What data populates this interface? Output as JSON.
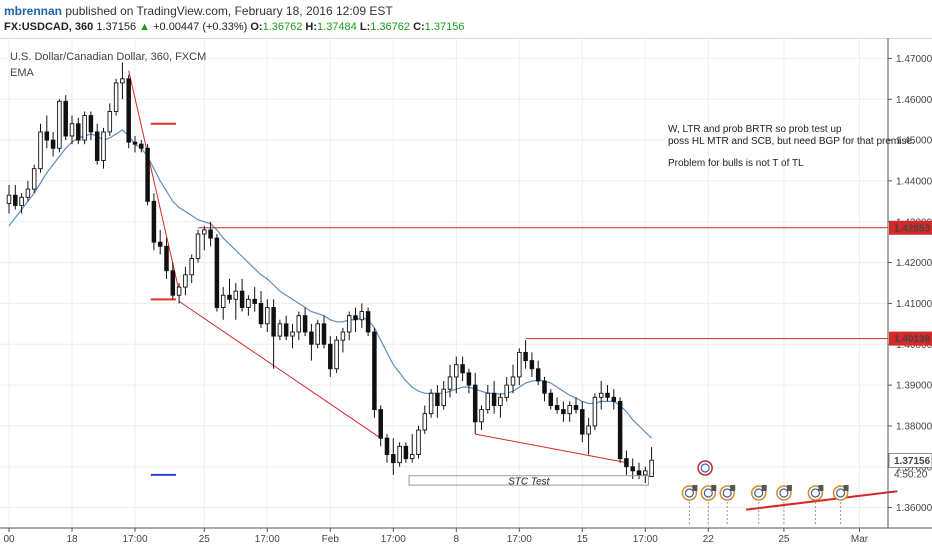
{
  "header": {
    "user": "mbrennan",
    "published": "published on TradingView.com, February 18, 2016 12:09 EST"
  },
  "quote": {
    "symbol": "FX:USDCAD, 360",
    "last": "1.37156",
    "arrow": "▲",
    "change": "+0.00447 (+0.33%)",
    "open_label": "O:",
    "open": "1.36762",
    "high_label": "H:",
    "high": "1.37484",
    "low_label": "L:",
    "low": "1.36762",
    "close_label": "C:",
    "close": "1.37156"
  },
  "chart_data": {
    "type": "candlestick",
    "title": "U.S. Dollar/Canadian Dollar, 360, FXCM",
    "indicator": "EMA",
    "ylim": [
      1.355,
      1.475
    ],
    "y_ticks": [
      "1.47000",
      "1.46000",
      "1.45000",
      "1.44000",
      "1.43000",
      "1.42000",
      "1.41000",
      "1.40000",
      "1.39000",
      "1.38000",
      "1.37000",
      "1.36000"
    ],
    "x_ticks": [
      {
        "i": 0,
        "label": "00"
      },
      {
        "i": 10,
        "label": "18"
      },
      {
        "i": 20,
        "label": "17:00"
      },
      {
        "i": 31,
        "label": "25"
      },
      {
        "i": 41,
        "label": "17:00"
      },
      {
        "i": 51,
        "label": "Feb"
      },
      {
        "i": 61,
        "label": "17:00"
      },
      {
        "i": 71,
        "label": "8"
      },
      {
        "i": 81,
        "label": "17:00"
      },
      {
        "i": 91,
        "label": "15"
      },
      {
        "i": 101,
        "label": "17:00"
      },
      {
        "i": 111,
        "label": "22"
      },
      {
        "i": 123,
        "label": "25"
      },
      {
        "i": 135,
        "label": "Mar"
      }
    ],
    "price_labels": [
      {
        "value": 1.42853,
        "text": "1.42853"
      },
      {
        "value": 1.40138,
        "text": "1.40138"
      },
      {
        "value": 1.37156,
        "text": "1.37156"
      }
    ],
    "countdown": "4:50:20",
    "ohlc": [
      [
        1.4345,
        1.439,
        1.432,
        1.4365
      ],
      [
        1.4365,
        1.439,
        1.433,
        1.434
      ],
      [
        1.434,
        1.437,
        1.432,
        1.436
      ],
      [
        1.436,
        1.44,
        1.435,
        1.438
      ],
      [
        1.438,
        1.444,
        1.437,
        1.443
      ],
      [
        1.443,
        1.454,
        1.442,
        1.452
      ],
      [
        1.452,
        1.456,
        1.448,
        1.45
      ],
      [
        1.45,
        1.452,
        1.446,
        1.448
      ],
      [
        1.448,
        1.46,
        1.447,
        1.4595
      ],
      [
        1.4595,
        1.461,
        1.45,
        1.451
      ],
      [
        1.451,
        1.456,
        1.449,
        1.454
      ],
      [
        1.454,
        1.4555,
        1.449,
        1.45
      ],
      [
        1.45,
        1.457,
        1.449,
        1.456
      ],
      [
        1.456,
        1.457,
        1.45,
        1.452
      ],
      [
        1.452,
        1.454,
        1.444,
        1.445
      ],
      [
        1.445,
        1.453,
        1.443,
        1.452
      ],
      [
        1.452,
        1.459,
        1.451,
        1.457
      ],
      [
        1.457,
        1.465,
        1.456,
        1.464
      ],
      [
        1.464,
        1.469,
        1.46,
        1.465
      ],
      [
        1.465,
        1.466,
        1.448,
        1.4495
      ],
      [
        1.4495,
        1.451,
        1.447,
        1.449
      ],
      [
        1.449,
        1.45,
        1.447,
        1.448
      ],
      [
        1.448,
        1.449,
        1.434,
        1.435
      ],
      [
        1.435,
        1.437,
        1.423,
        1.425
      ],
      [
        1.425,
        1.428,
        1.422,
        1.424
      ],
      [
        1.424,
        1.426,
        1.416,
        1.418
      ],
      [
        1.418,
        1.42,
        1.411,
        1.412
      ],
      [
        1.412,
        1.415,
        1.41,
        1.414
      ],
      [
        1.414,
        1.419,
        1.412,
        1.417
      ],
      [
        1.417,
        1.422,
        1.415,
        1.421
      ],
      [
        1.421,
        1.428,
        1.42,
        1.427
      ],
      [
        1.427,
        1.429,
        1.423,
        1.428
      ],
      [
        1.428,
        1.43,
        1.424,
        1.426
      ],
      [
        1.426,
        1.427,
        1.408,
        1.409
      ],
      [
        1.409,
        1.414,
        1.406,
        1.412
      ],
      [
        1.412,
        1.416,
        1.41,
        1.411
      ],
      [
        1.411,
        1.415,
        1.406,
        1.413
      ],
      [
        1.413,
        1.416,
        1.408,
        1.409
      ],
      [
        1.409,
        1.412,
        1.407,
        1.411
      ],
      [
        1.411,
        1.414,
        1.408,
        1.41
      ],
      [
        1.41,
        1.413,
        1.404,
        1.405
      ],
      [
        1.405,
        1.411,
        1.403,
        1.409
      ],
      [
        1.409,
        1.411,
        1.394,
        1.402
      ],
      [
        1.402,
        1.406,
        1.401,
        1.405
      ],
      [
        1.405,
        1.407,
        1.401,
        1.402
      ],
      [
        1.402,
        1.405,
        1.399,
        1.403
      ],
      [
        1.403,
        1.408,
        1.401,
        1.407
      ],
      [
        1.407,
        1.409,
        1.402,
        1.403
      ],
      [
        1.403,
        1.405,
        1.396,
        1.4
      ],
      [
        1.4,
        1.406,
        1.399,
        1.405
      ],
      [
        1.405,
        1.407,
        1.399,
        1.4
      ],
      [
        1.4,
        1.402,
        1.392,
        1.394
      ],
      [
        1.394,
        1.402,
        1.393,
        1.401
      ],
      [
        1.401,
        1.404,
        1.398,
        1.403
      ],
      [
        1.403,
        1.408,
        1.401,
        1.407
      ],
      [
        1.407,
        1.409,
        1.403,
        1.406
      ],
      [
        1.406,
        1.41,
        1.404,
        1.408
      ],
      [
        1.408,
        1.409,
        1.402,
        1.403
      ],
      [
        1.403,
        1.404,
        1.382,
        1.384
      ],
      [
        1.384,
        1.385,
        1.375,
        1.377
      ],
      [
        1.377,
        1.378,
        1.371,
        1.373
      ],
      [
        1.373,
        1.377,
        1.368,
        1.371
      ],
      [
        1.371,
        1.376,
        1.37,
        1.375
      ],
      [
        1.375,
        1.376,
        1.371,
        1.372
      ],
      [
        1.372,
        1.378,
        1.371,
        1.373
      ],
      [
        1.373,
        1.38,
        1.372,
        1.379
      ],
      [
        1.379,
        1.385,
        1.378,
        1.383
      ],
      [
        1.383,
        1.389,
        1.382,
        1.388
      ],
      [
        1.388,
        1.39,
        1.382,
        1.385
      ],
      [
        1.385,
        1.391,
        1.384,
        1.389
      ],
      [
        1.389,
        1.395,
        1.387,
        1.392
      ],
      [
        1.392,
        1.397,
        1.388,
        1.395
      ],
      [
        1.395,
        1.397,
        1.391,
        1.393
      ],
      [
        1.393,
        1.394,
        1.388,
        1.39
      ],
      [
        1.39,
        1.393,
        1.378,
        1.381
      ],
      [
        1.381,
        1.385,
        1.379,
        1.384
      ],
      [
        1.384,
        1.39,
        1.383,
        1.388
      ],
      [
        1.388,
        1.391,
        1.383,
        1.385
      ],
      [
        1.385,
        1.388,
        1.382,
        1.387
      ],
      [
        1.387,
        1.392,
        1.386,
        1.39
      ],
      [
        1.39,
        1.395,
        1.388,
        1.392
      ],
      [
        1.392,
        1.399,
        1.39,
        1.398
      ],
      [
        1.398,
        1.401,
        1.394,
        1.396
      ],
      [
        1.396,
        1.398,
        1.392,
        1.394
      ],
      [
        1.394,
        1.396,
        1.39,
        1.391
      ],
      [
        1.391,
        1.392,
        1.386,
        1.388
      ],
      [
        1.388,
        1.389,
        1.384,
        1.385
      ],
      [
        1.385,
        1.387,
        1.383,
        1.384
      ],
      [
        1.384,
        1.386,
        1.381,
        1.383
      ],
      [
        1.383,
        1.386,
        1.381,
        1.385
      ],
      [
        1.385,
        1.387,
        1.383,
        1.384
      ],
      [
        1.384,
        1.386,
        1.376,
        1.378
      ],
      [
        1.378,
        1.382,
        1.373,
        1.38
      ],
      [
        1.38,
        1.388,
        1.379,
        1.387
      ],
      [
        1.387,
        1.391,
        1.384,
        1.388
      ],
      [
        1.388,
        1.39,
        1.386,
        1.387
      ],
      [
        1.387,
        1.389,
        1.384,
        1.386
      ],
      [
        1.386,
        1.387,
        1.371,
        1.372
      ],
      [
        1.372,
        1.374,
        1.368,
        1.37
      ],
      [
        1.37,
        1.372,
        1.367,
        1.369
      ],
      [
        1.369,
        1.371,
        1.367,
        1.368
      ],
      [
        1.368,
        1.37,
        1.366,
        1.369
      ],
      [
        1.3676,
        1.3748,
        1.3676,
        1.3716
      ]
    ],
    "ema": [
      1.429,
      1.431,
      1.433,
      1.435,
      1.437,
      1.4395,
      1.442,
      1.444,
      1.446,
      1.448,
      1.4495,
      1.4505,
      1.451,
      1.4515,
      1.451,
      1.45,
      1.4505,
      1.4515,
      1.4525,
      1.451,
      1.449,
      1.448,
      1.446,
      1.443,
      1.44,
      1.4375,
      1.435,
      1.4335,
      1.4325,
      1.4315,
      1.4305,
      1.43,
      1.4295,
      1.428,
      1.426,
      1.4245,
      1.423,
      1.4215,
      1.42,
      1.4185,
      1.417,
      1.416,
      1.4145,
      1.413,
      1.412,
      1.411,
      1.41,
      1.409,
      1.408,
      1.4075,
      1.407,
      1.406,
      1.4055,
      1.4055,
      1.406,
      1.406,
      1.4065,
      1.406,
      1.404,
      1.401,
      1.398,
      1.395,
      1.393,
      1.391,
      1.3895,
      1.3885,
      1.388,
      1.388,
      1.388,
      1.388,
      1.3885,
      1.389,
      1.3895,
      1.3895,
      1.389,
      1.3885,
      1.388,
      1.388,
      1.3878,
      1.388,
      1.3885,
      1.3895,
      1.3905,
      1.391,
      1.3912,
      1.391,
      1.3905,
      1.3895,
      1.3885,
      1.3875,
      1.3868,
      1.386,
      1.3855,
      1.3855,
      1.386,
      1.386,
      1.386,
      1.385,
      1.3835,
      1.3815,
      1.38,
      1.3785,
      1.377
    ],
    "lines": [
      {
        "kind": "horizontal",
        "value": 1.42853,
        "from": 30,
        "to": 142
      },
      {
        "kind": "horizontal",
        "value": 1.40138,
        "from": 82,
        "to": 142
      },
      {
        "kind": "trend",
        "p1": [
          19,
          1.467
        ],
        "p2": [
          27,
          1.413
        ]
      },
      {
        "kind": "trend",
        "p1": [
          27,
          1.4105
        ],
        "p2": [
          59,
          1.377
        ]
      },
      {
        "kind": "trend",
        "p1": [
          74,
          1.378
        ],
        "p2": [
          98,
          1.371
        ]
      },
      {
        "kind": "trend",
        "p1": [
          117,
          1.3595
        ],
        "p2": [
          141,
          1.364
        ]
      }
    ],
    "segments": [
      {
        "value": 1.454,
        "from": 22.5,
        "to": 26.5,
        "color": "#e03030"
      },
      {
        "value": 1.411,
        "from": 22.5,
        "to": 26.5,
        "color": "#e03030"
      },
      {
        "value": 1.368,
        "from": 22.5,
        "to": 26.5,
        "color": "#2b3fd8"
      }
    ],
    "rect": {
      "label": "STC Test",
      "from": 63.5,
      "to": 101.5,
      "top": 1.3678,
      "bottom": 1.3655
    },
    "annotation": [
      "W, LTR and prob BRTR so prob test up",
      "poss HL MTR and SCB, but need BGP for that premise.",
      "",
      "Problem for bulls is not T of TL"
    ],
    "event_markers": [
      108,
      111,
      114,
      119,
      123,
      128,
      132
    ]
  }
}
